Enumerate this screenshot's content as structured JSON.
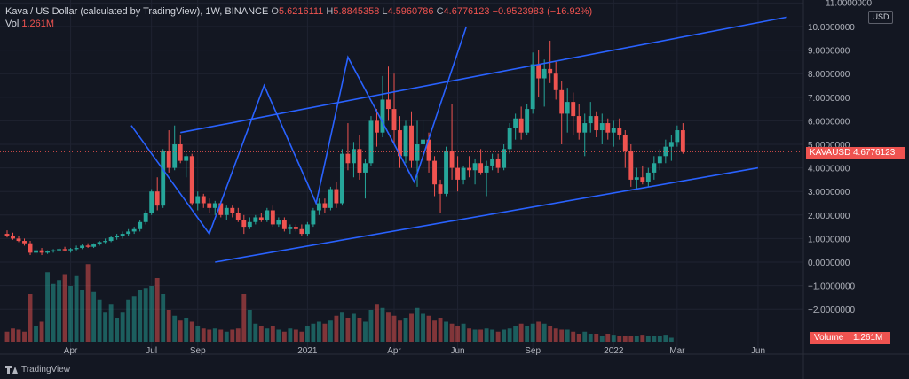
{
  "header": {
    "symbol": "Kava / US Dollar (calculated by TradingView), 1W, BINANCE",
    "o_key": "O",
    "o_val": "5.6216111",
    "h_key": "H",
    "h_val": "5.8845358",
    "l_key": "L",
    "l_val": "4.5960786",
    "c_key": "C",
    "c_val": "4.6776123",
    "change": "−0.9523983 (−16.92%)"
  },
  "volume_header": {
    "label": "Vol",
    "value": "1.261M"
  },
  "axis_unit": "USD",
  "price_tag": {
    "symbol": "KAVAUSD",
    "value": "4.6776123"
  },
  "volume_tag": {
    "label": "Volume",
    "value": "1.261M"
  },
  "brand": "TradingView",
  "colors": {
    "up": "#26a69a",
    "down": "#ef5350",
    "lines": "#2962ff",
    "background": "#131722"
  },
  "chart_data": {
    "type": "candlestick",
    "title": "Kava / US Dollar (calculated by TradingView), 1W, BINANCE",
    "ylabel": "USD",
    "ylim": [
      -3.0,
      11.0
    ],
    "y_ticks": [
      "11.0000000",
      "10.0000000",
      "9.0000000",
      "8.0000000",
      "7.0000000",
      "6.0000000",
      "5.0000000",
      "4.0000000",
      "3.0000000",
      "2.0000000",
      "1.0000000",
      "0.0000000",
      "−1.0000000",
      "−2.0000000"
    ],
    "y_tick_values": [
      11,
      10,
      9,
      8,
      7,
      6,
      5,
      4,
      3,
      2,
      1,
      0,
      -1,
      -2
    ],
    "x_labels": [
      "Apr",
      "Jul",
      "Sep",
      "2021",
      "Apr",
      "Jun",
      "Sep",
      "2022",
      "Mar",
      "Jun"
    ],
    "x_label_weeks": [
      11,
      25,
      33,
      52,
      67,
      78,
      91,
      105,
      116,
      130
    ],
    "grid": true,
    "start_label": "2020-01",
    "weeks_total": 136,
    "candles": [
      [
        1.2,
        1.35,
        1.05,
        1.1
      ],
      [
        1.1,
        1.25,
        0.95,
        1.0
      ],
      [
        1.0,
        1.1,
        0.85,
        0.9
      ],
      [
        0.9,
        1.0,
        0.7,
        0.8
      ],
      [
        0.8,
        0.9,
        0.3,
        0.4
      ],
      [
        0.4,
        0.6,
        0.3,
        0.5
      ],
      [
        0.5,
        0.6,
        0.3,
        0.4
      ],
      [
        0.4,
        0.5,
        0.35,
        0.45
      ],
      [
        0.45,
        0.55,
        0.4,
        0.5
      ],
      [
        0.5,
        0.6,
        0.45,
        0.55
      ],
      [
        0.55,
        0.65,
        0.45,
        0.5
      ],
      [
        0.5,
        0.6,
        0.4,
        0.55
      ],
      [
        0.55,
        0.7,
        0.5,
        0.6
      ],
      [
        0.6,
        0.75,
        0.55,
        0.7
      ],
      [
        0.7,
        0.8,
        0.6,
        0.65
      ],
      [
        0.65,
        0.8,
        0.6,
        0.75
      ],
      [
        0.75,
        0.9,
        0.7,
        0.85
      ],
      [
        0.85,
        1.0,
        0.8,
        0.9
      ],
      [
        0.9,
        1.1,
        0.85,
        1.05
      ],
      [
        1.05,
        1.2,
        0.95,
        1.1
      ],
      [
        1.1,
        1.3,
        1.0,
        1.2
      ],
      [
        1.2,
        1.4,
        1.1,
        1.3
      ],
      [
        1.3,
        1.5,
        1.2,
        1.4
      ],
      [
        1.4,
        1.8,
        1.3,
        1.7
      ],
      [
        1.7,
        2.2,
        1.6,
        2.1
      ],
      [
        2.1,
        3.1,
        2.0,
        3.0
      ],
      [
        3.0,
        3.6,
        2.2,
        2.4
      ],
      [
        2.4,
        4.8,
        2.3,
        4.7
      ],
      [
        4.7,
        5.6,
        3.8,
        4.0
      ],
      [
        4.0,
        5.8,
        3.9,
        5.0
      ],
      [
        5.0,
        5.4,
        4.2,
        4.3
      ],
      [
        4.3,
        4.6,
        3.6,
        4.5
      ],
      [
        4.5,
        4.6,
        2.4,
        2.5
      ],
      [
        2.5,
        3.0,
        2.2,
        2.8
      ],
      [
        2.8,
        2.9,
        2.3,
        2.5
      ],
      [
        2.5,
        2.7,
        2.1,
        2.3
      ],
      [
        2.3,
        2.6,
        2.0,
        2.5
      ],
      [
        2.5,
        2.6,
        1.9,
        2.0
      ],
      [
        2.0,
        2.4,
        1.8,
        2.3
      ],
      [
        2.3,
        2.4,
        1.9,
        2.1
      ],
      [
        2.1,
        2.3,
        1.7,
        1.8
      ],
      [
        1.8,
        2.0,
        1.2,
        1.5
      ],
      [
        1.5,
        1.9,
        1.4,
        1.7
      ],
      [
        1.7,
        2.0,
        1.6,
        1.9
      ],
      [
        1.9,
        2.1,
        1.7,
        1.8
      ],
      [
        1.8,
        2.3,
        1.7,
        2.2
      ],
      [
        2.2,
        2.4,
        1.5,
        1.6
      ],
      [
        1.6,
        1.9,
        1.5,
        1.8
      ],
      [
        1.8,
        1.9,
        1.3,
        1.4
      ],
      [
        1.4,
        1.6,
        1.2,
        1.5
      ],
      [
        1.5,
        1.6,
        1.3,
        1.4
      ],
      [
        1.4,
        1.6,
        1.1,
        1.2
      ],
      [
        1.2,
        1.7,
        1.1,
        1.6
      ],
      [
        1.6,
        2.3,
        1.5,
        2.2
      ],
      [
        2.2,
        2.7,
        2.0,
        2.5
      ],
      [
        2.5,
        2.7,
        2.1,
        2.3
      ],
      [
        2.3,
        3.2,
        2.2,
        3.1
      ],
      [
        3.1,
        3.4,
        2.3,
        2.5
      ],
      [
        2.5,
        4.8,
        2.4,
        4.6
      ],
      [
        4.6,
        5.9,
        3.9,
        4.2
      ],
      [
        4.2,
        5.1,
        3.6,
        4.8
      ],
      [
        4.8,
        5.4,
        3.5,
        3.8
      ],
      [
        3.8,
        4.4,
        2.7,
        4.2
      ],
      [
        4.2,
        6.2,
        4.1,
        6.0
      ],
      [
        6.0,
        6.5,
        4.9,
        5.5
      ],
      [
        5.5,
        7.9,
        5.3,
        6.9
      ],
      [
        6.9,
        8.3,
        6.0,
        6.5
      ],
      [
        6.5,
        8.0,
        5.0,
        5.6
      ],
      [
        5.6,
        6.2,
        4.0,
        4.5
      ],
      [
        4.5,
        6.0,
        4.2,
        5.8
      ],
      [
        5.8,
        6.4,
        4.0,
        4.3
      ],
      [
        4.3,
        6.0,
        3.2,
        5.0
      ],
      [
        5.0,
        6.0,
        3.9,
        5.2
      ],
      [
        5.2,
        5.5,
        3.8,
        4.3
      ],
      [
        4.3,
        4.5,
        2.8,
        3.3
      ],
      [
        3.3,
        3.5,
        2.1,
        2.9
      ],
      [
        2.9,
        4.9,
        2.8,
        4.7
      ],
      [
        4.7,
        6.7,
        3.5,
        4.0
      ],
      [
        4.0,
        4.5,
        3.0,
        3.5
      ],
      [
        3.5,
        4.1,
        3.3,
        4.0
      ],
      [
        4.0,
        4.5,
        3.6,
        3.9
      ],
      [
        3.9,
        4.4,
        3.3,
        4.2
      ],
      [
        4.2,
        4.8,
        3.7,
        3.8
      ],
      [
        3.8,
        4.3,
        2.8,
        4.1
      ],
      [
        4.1,
        4.6,
        3.9,
        4.4
      ],
      [
        4.4,
        4.6,
        3.8,
        4.0
      ],
      [
        4.0,
        5.0,
        3.9,
        4.8
      ],
      [
        4.8,
        5.9,
        4.6,
        5.7
      ],
      [
        5.7,
        6.3,
        5.2,
        6.1
      ],
      [
        6.1,
        6.6,
        5.2,
        5.5
      ],
      [
        5.5,
        6.7,
        5.4,
        6.5
      ],
      [
        6.5,
        8.9,
        6.3,
        8.4
      ],
      [
        8.4,
        9.0,
        7.0,
        7.8
      ],
      [
        7.8,
        8.6,
        6.6,
        8.2
      ],
      [
        8.2,
        9.4,
        7.6,
        8.0
      ],
      [
        8.0,
        8.5,
        6.9,
        7.3
      ],
      [
        7.3,
        7.7,
        5.0,
        6.3
      ],
      [
        6.3,
        7.4,
        5.5,
        6.8
      ],
      [
        6.8,
        7.2,
        5.4,
        6.2
      ],
      [
        6.2,
        6.7,
        5.2,
        5.5
      ],
      [
        5.5,
        6.3,
        4.5,
        5.9
      ],
      [
        5.9,
        6.8,
        5.5,
        6.2
      ],
      [
        6.2,
        6.4,
        5.3,
        5.6
      ],
      [
        5.6,
        6.3,
        5.0,
        5.9
      ],
      [
        5.9,
        6.1,
        5.2,
        5.5
      ],
      [
        5.5,
        6.0,
        4.9,
        5.7
      ],
      [
        5.7,
        6.1,
        5.2,
        5.4
      ],
      [
        5.4,
        5.6,
        4.0,
        4.7
      ],
      [
        4.7,
        5.0,
        3.2,
        3.5
      ],
      [
        3.5,
        4.0,
        3.1,
        3.6
      ],
      [
        3.6,
        4.1,
        3.3,
        3.4
      ],
      [
        3.4,
        4.0,
        3.2,
        3.8
      ],
      [
        3.8,
        4.5,
        3.5,
        4.2
      ],
      [
        4.2,
        4.8,
        3.9,
        4.5
      ],
      [
        4.5,
        5.2,
        4.2,
        4.9
      ],
      [
        4.9,
        5.4,
        4.3,
        5.1
      ],
      [
        5.1,
        5.8,
        4.9,
        5.6
      ],
      [
        5.6,
        5.9,
        4.6,
        4.68
      ]
    ],
    "volumes": [
      0.5,
      0.7,
      0.6,
      0.5,
      2.4,
      0.8,
      1.0,
      3.5,
      2.9,
      3.1,
      3.4,
      2.8,
      3.3,
      2.6,
      3.9,
      2.5,
      2.1,
      1.5,
      1.9,
      1.2,
      1.5,
      2.1,
      2.3,
      2.6,
      2.7,
      2.8,
      3.2,
      2.4,
      1.6,
      1.3,
      1.1,
      1.2,
      1.0,
      0.8,
      0.7,
      0.6,
      0.7,
      0.6,
      0.5,
      0.6,
      0.7,
      2.4,
      1.6,
      0.9,
      0.8,
      0.7,
      0.8,
      0.6,
      0.5,
      0.7,
      0.6,
      0.5,
      0.8,
      0.9,
      1.0,
      0.9,
      1.1,
      1.3,
      1.5,
      1.2,
      1.4,
      1.2,
      1.0,
      1.6,
      1.9,
      1.7,
      1.5,
      1.3,
      1.1,
      1.2,
      1.4,
      1.7,
      1.4,
      1.3,
      1.1,
      1.2,
      1.0,
      0.9,
      0.8,
      0.9,
      0.7,
      0.6,
      0.6,
      0.7,
      0.6,
      0.5,
      0.6,
      0.7,
      0.8,
      0.9,
      0.8,
      0.9,
      1.0,
      0.9,
      0.8,
      0.7,
      0.6,
      0.6,
      0.5,
      0.4,
      0.5,
      0.4,
      0.4,
      0.3,
      0.4,
      0.35,
      0.3,
      0.3,
      0.3,
      0.3,
      0.35,
      0.3,
      0.3,
      0.3,
      0.35,
      0.2
    ],
    "first_candle_week": 0,
    "channel_upper": [
      [
        30,
        5.5
      ],
      [
        135,
        10.4
      ]
    ],
    "channel_lower": [
      [
        36,
        0.0
      ],
      [
        130,
        4.0
      ]
    ],
    "zigzag": [
      [
        43,
        5.8
      ],
      [
        70,
        1.2
      ],
      [
        89,
        7.5
      ],
      [
        107,
        2.5
      ],
      [
        118,
        8.7
      ],
      [
        141,
        3.4
      ],
      [
        159,
        10.0
      ]
    ],
    "zigzag_week_unit": "half-week"
  }
}
